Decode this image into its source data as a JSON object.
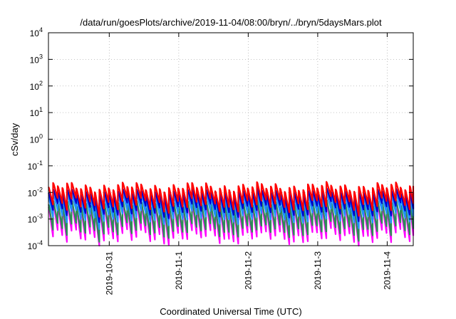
{
  "chart_data": {
    "type": "line",
    "title": "/data/run/goesPlots/archive/2019-11-04/08:00/bryn/../bryn/5daysMars.plot",
    "xlabel": "Coordinated Universal Time (UTC)",
    "ylabel": "cSv/day",
    "yscale": "log",
    "ylim": [
      0.0001,
      10000
    ],
    "xlim": [
      "2019-10-30T03:00",
      "2019-11-04T09:00"
    ],
    "x_ticks": [
      {
        "label": "2019-10-31",
        "t": "2019-10-31T00:00"
      },
      {
        "label": "2019-11-1",
        "t": "2019-11-01T00:00"
      },
      {
        "label": "2019-11-2",
        "t": "2019-11-02T00:00"
      },
      {
        "label": "2019-11-3",
        "t": "2019-11-03T00:00"
      },
      {
        "label": "2019-11-4",
        "t": "2019-11-04T00:00"
      }
    ],
    "y_ticks": [
      {
        "base": "10",
        "exp": "-4",
        "value": 0.0001
      },
      {
        "base": "10",
        "exp": "-3",
        "value": 0.001
      },
      {
        "base": "10",
        "exp": "-2",
        "value": 0.01
      },
      {
        "base": "10",
        "exp": "-1",
        "value": 0.1
      },
      {
        "base": "10",
        "exp": "0",
        "value": 1
      },
      {
        "base": "10",
        "exp": "1",
        "value": 10
      },
      {
        "base": "10",
        "exp": "2",
        "value": 100
      },
      {
        "base": "10",
        "exp": "3",
        "value": 1000
      },
      {
        "base": "10",
        "exp": "4",
        "value": 10000
      }
    ],
    "grid": true,
    "legend": "none",
    "sawtooth_period_hours": 1.6,
    "series": [
      {
        "color": "#ff00ff",
        "peak": 0.0028,
        "trough": 0.00022
      },
      {
        "color": "#2e8b57",
        "peak": 0.0035,
        "trough": 0.0004
      },
      {
        "color": "#1e90ff",
        "peak": 0.0065,
        "trough": 0.0012
      },
      {
        "color": "#0000cd",
        "peak": 0.0095,
        "trough": 0.0022
      },
      {
        "color": "#ff0000",
        "peak": 0.016,
        "trough": 0.0035
      }
    ]
  }
}
